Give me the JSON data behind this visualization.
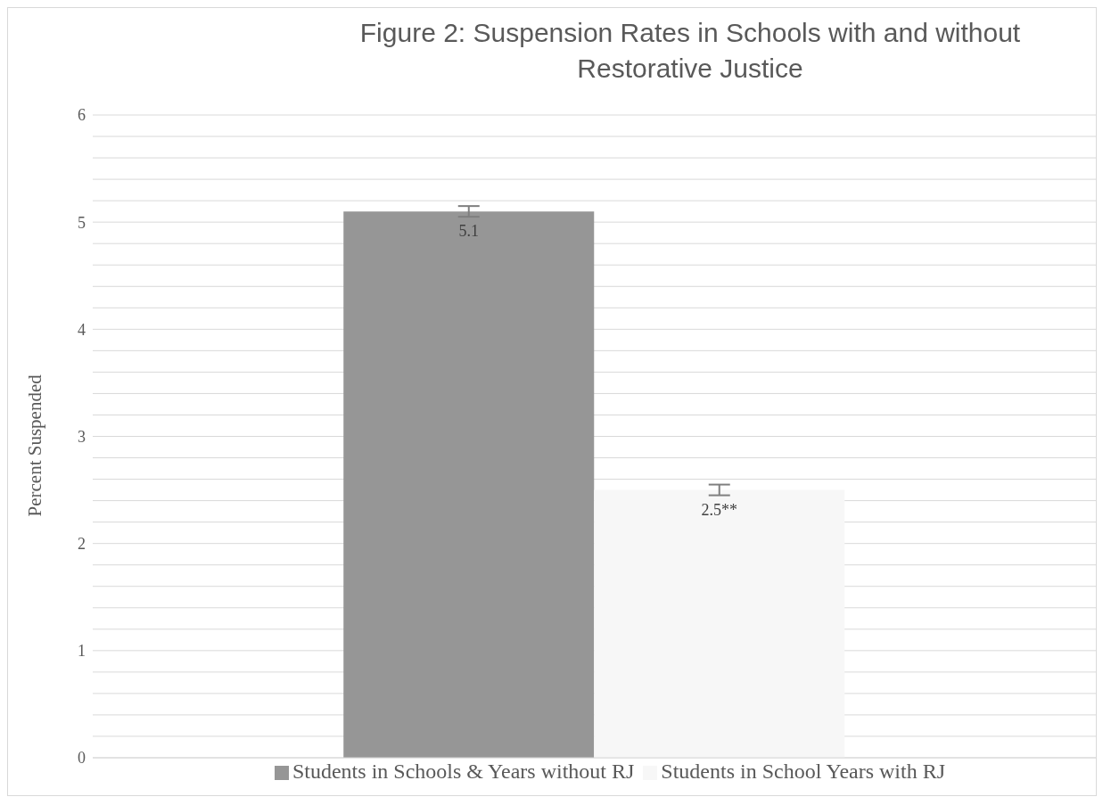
{
  "chart_data": {
    "type": "bar",
    "title": "Figure 2: Suspension Rates in Schools with and without Restorative Justice",
    "ylabel": "Percent Suspended",
    "categories": [
      null
    ],
    "series": [
      {
        "name": "Students in Schools & Years without RJ",
        "color": "#969696",
        "values": [
          5.1
        ],
        "errors": [
          0.05
        ],
        "value_labels": [
          "5.1"
        ]
      },
      {
        "name": "Students in School Years with RJ",
        "color": "#f7f7f7",
        "values": [
          2.5
        ],
        "errors": [
          0.05
        ],
        "value_labels": [
          "2.5**"
        ]
      }
    ],
    "ylim": [
      0,
      6
    ],
    "yticks": [
      0,
      {
        "value": 0.2,
        "label": null
      },
      {
        "value": 0.4,
        "label": null
      },
      {
        "value": 0.6,
        "label": null
      },
      {
        "value": 0.8,
        "label": null
      },
      1,
      {
        "value": 1.2,
        "label": null
      },
      {
        "value": 1.4,
        "label": null
      },
      {
        "value": 1.6,
        "label": null
      },
      {
        "value": 1.8,
        "label": null
      },
      2,
      {
        "value": 2.2,
        "label": null
      },
      {
        "value": 2.4,
        "label": null
      },
      {
        "value": 2.6,
        "label": null
      },
      {
        "value": 2.8,
        "label": null
      },
      3,
      {
        "value": 3.2,
        "label": null
      },
      {
        "value": 3.4,
        "label": null
      },
      {
        "value": 3.6,
        "label": null
      },
      {
        "value": 3.8,
        "label": null
      },
      4,
      {
        "value": 4.2,
        "label": null
      },
      {
        "value": 4.4,
        "label": null
      },
      {
        "value": 4.6,
        "label": null
      },
      {
        "value": 4.8,
        "label": null
      },
      5,
      {
        "value": 5.2,
        "label": null
      },
      {
        "value": 5.4,
        "label": null
      },
      {
        "value": 5.6,
        "label": null
      },
      {
        "value": 5.8,
        "label": null
      },
      6
    ],
    "grid": "y",
    "legend": "bottom"
  }
}
